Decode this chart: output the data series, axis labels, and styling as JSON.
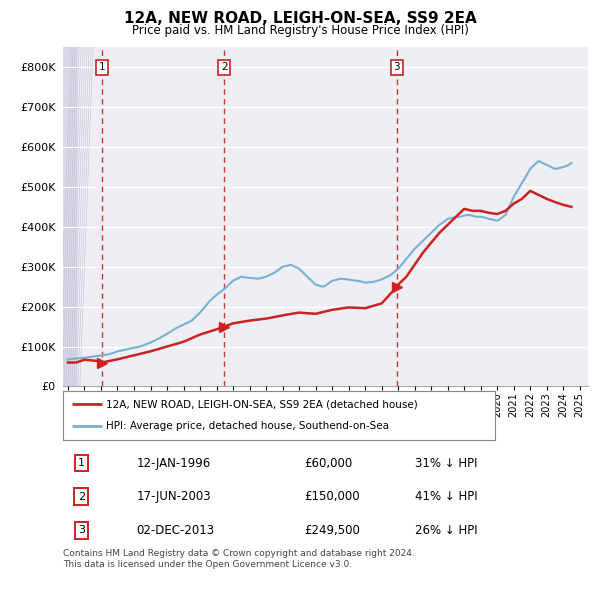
{
  "title": "12A, NEW ROAD, LEIGH-ON-SEA, SS9 2EA",
  "subtitle": "Price paid vs. HM Land Registry's House Price Index (HPI)",
  "ylabel_ticks": [
    "£0",
    "£100K",
    "£200K",
    "£300K",
    "£400K",
    "£500K",
    "£600K",
    "£700K",
    "£800K"
  ],
  "ytick_values": [
    0,
    100000,
    200000,
    300000,
    400000,
    500000,
    600000,
    700000,
    800000
  ],
  "ylim": [
    0,
    850000
  ],
  "xlim_start": 1993.7,
  "xlim_end": 2025.5,
  "hpi_color": "#7ab0d4",
  "sale_color": "#cc2222",
  "marker_color": "#cc2222",
  "vline_color": "#cc2222",
  "background_color": "#ffffff",
  "plot_bg_color": "#eeeef5",
  "grid_color": "#ffffff",
  "hatch_end": 1994.5,
  "transactions": [
    {
      "date_num": 1996.04,
      "price": 60000,
      "label": "1",
      "pct": "31%",
      "date_str": "12-JAN-1996",
      "price_str": "£60,000"
    },
    {
      "date_num": 2003.46,
      "price": 150000,
      "label": "2",
      "pct": "41%",
      "date_str": "17-JUN-2003",
      "price_str": "£150,000"
    },
    {
      "date_num": 2013.92,
      "price": 249500,
      "label": "3",
      "pct": "26%",
      "date_str": "02-DEC-2013",
      "price_str": "£249,500"
    }
  ],
  "legend_sale_label": "12A, NEW ROAD, LEIGH-ON-SEA, SS9 2EA (detached house)",
  "legend_hpi_label": "HPI: Average price, detached house, Southend-on-Sea",
  "footnote": "Contains HM Land Registry data © Crown copyright and database right 2024.\nThis data is licensed under the Open Government Licence v3.0.",
  "hpi_data_x": [
    1994.0,
    1994.25,
    1994.5,
    1994.75,
    1995.0,
    1995.25,
    1995.5,
    1995.75,
    1996.0,
    1996.25,
    1996.5,
    1996.75,
    1997.0,
    1997.25,
    1997.5,
    1997.75,
    1998.0,
    1998.25,
    1998.5,
    1998.75,
    1999.0,
    1999.25,
    1999.5,
    1999.75,
    2000.0,
    2000.25,
    2000.5,
    2000.75,
    2001.0,
    2001.25,
    2001.5,
    2001.75,
    2002.0,
    2002.25,
    2002.5,
    2002.75,
    2003.0,
    2003.25,
    2003.5,
    2003.75,
    2004.0,
    2004.25,
    2004.5,
    2004.75,
    2005.0,
    2005.25,
    2005.5,
    2005.75,
    2006.0,
    2006.25,
    2006.5,
    2006.75,
    2007.0,
    2007.25,
    2007.5,
    2007.75,
    2008.0,
    2008.25,
    2008.5,
    2008.75,
    2009.0,
    2009.25,
    2009.5,
    2009.75,
    2010.0,
    2010.25,
    2010.5,
    2010.75,
    2011.0,
    2011.25,
    2011.5,
    2011.75,
    2012.0,
    2012.25,
    2012.5,
    2012.75,
    2013.0,
    2013.25,
    2013.5,
    2013.75,
    2014.0,
    2014.25,
    2014.5,
    2014.75,
    2015.0,
    2015.25,
    2015.5,
    2015.75,
    2016.0,
    2016.25,
    2016.5,
    2016.75,
    2017.0,
    2017.25,
    2017.5,
    2017.75,
    2018.0,
    2018.25,
    2018.5,
    2018.75,
    2019.0,
    2019.25,
    2019.5,
    2019.75,
    2020.0,
    2020.25,
    2020.5,
    2020.75,
    2021.0,
    2021.25,
    2021.5,
    2021.75,
    2022.0,
    2022.25,
    2022.5,
    2022.75,
    2023.0,
    2023.25,
    2023.5,
    2023.75,
    2024.0,
    2024.25,
    2024.5
  ],
  "hpi_data_y": [
    68000,
    69000,
    70000,
    71000,
    72000,
    73000,
    75000,
    76000,
    78000,
    79000,
    81000,
    84000,
    88000,
    90000,
    92000,
    95000,
    97000,
    99000,
    102000,
    106000,
    110000,
    115000,
    120000,
    126000,
    132000,
    138000,
    145000,
    150000,
    155000,
    160000,
    165000,
    175000,
    185000,
    197000,
    210000,
    220000,
    230000,
    237000,
    245000,
    255000,
    265000,
    270000,
    275000,
    273000,
    272000,
    271000,
    270000,
    272000,
    275000,
    280000,
    285000,
    292000,
    300000,
    302000,
    305000,
    300000,
    295000,
    285000,
    275000,
    265000,
    255000,
    252000,
    250000,
    257000,
    265000,
    267000,
    270000,
    269000,
    268000,
    266000,
    265000,
    263000,
    260000,
    261000,
    262000,
    265000,
    268000,
    273000,
    278000,
    286000,
    295000,
    307000,
    320000,
    332000,
    345000,
    355000,
    365000,
    375000,
    385000,
    395000,
    405000,
    412000,
    420000,
    422000,
    425000,
    425000,
    428000,
    430000,
    428000,
    425000,
    425000,
    423000,
    420000,
    418000,
    415000,
    422000,
    430000,
    452000,
    475000,
    492000,
    510000,
    527000,
    545000,
    555000,
    565000,
    560000,
    555000,
    550000,
    545000,
    547000,
    550000,
    553000,
    560000
  ],
  "sale_data_x": [
    1996.04,
    2003.46,
    2013.92
  ],
  "sale_data_y": [
    60000,
    150000,
    249500
  ],
  "red_line_x": [
    1994.0,
    1994.5,
    1995.0,
    1995.5,
    1996.0,
    1996.04,
    1997.0,
    1998.0,
    1999.0,
    2000.0,
    2001.0,
    2002.0,
    2003.0,
    2003.46,
    2004.0,
    2005.0,
    2006.0,
    2007.0,
    2008.0,
    2009.0,
    2010.0,
    2011.0,
    2012.0,
    2013.0,
    2013.92,
    2014.0,
    2014.5,
    2015.0,
    2015.5,
    2016.0,
    2016.5,
    2017.0,
    2017.5,
    2018.0,
    2018.5,
    2019.0,
    2019.5,
    2020.0,
    2020.5,
    2021.0,
    2021.5,
    2022.0,
    2022.5,
    2023.0,
    2023.5,
    2024.0,
    2024.5
  ],
  "red_line_y": [
    60000,
    60000,
    67000,
    65000,
    63000,
    60000,
    68000,
    78000,
    88000,
    100000,
    112000,
    130000,
    143000,
    150000,
    158000,
    165000,
    170000,
    178000,
    185000,
    182000,
    192000,
    198000,
    196000,
    208000,
    249500,
    255000,
    275000,
    305000,
    335000,
    360000,
    385000,
    405000,
    425000,
    445000,
    440000,
    440000,
    435000,
    432000,
    440000,
    458000,
    470000,
    490000,
    480000,
    470000,
    462000,
    455000,
    450000
  ]
}
